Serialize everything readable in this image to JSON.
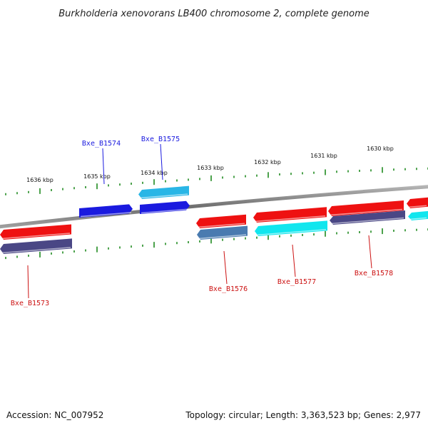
{
  "title": "Burkholderia xenovorans LB400 chromosome 2, complete genome",
  "footer": {
    "accession": "Accession: NC_007952",
    "summary": "Topology: circular; Length: 3,363,523 bp; Genes: 2,977"
  },
  "colors": {
    "backbone": "#7a7a7a",
    "ruler_ticks": "#1f8a1f",
    "tick_label": "#111111",
    "forward_strand": "#1a1adf",
    "forward_strand_alt": "#29b6e6",
    "reverse_strand_red": "#ee1111",
    "reverse_strand_navy": "#4a4785",
    "reverse_strand_steel": "#4a7bb0",
    "reverse_strand_cyan": "#11e6ee",
    "label_forward": "#1a1adf",
    "label_reverse": "#cc1111"
  },
  "ruler": {
    "labels": [
      "1636 kbp",
      "1635 kbp",
      "1634 kbp",
      "1633 kbp",
      "1632 kbp",
      "1631 kbp",
      "1630 kbp"
    ]
  },
  "genes": [
    {
      "name": "Bxe_B1573",
      "strand": "reverse"
    },
    {
      "name": "Bxe_B1574",
      "strand": "forward"
    },
    {
      "name": "Bxe_B1575",
      "strand": "forward"
    },
    {
      "name": "Bxe_B1576",
      "strand": "reverse"
    },
    {
      "name": "Bxe_B1577",
      "strand": "reverse"
    },
    {
      "name": "Bxe_B1578",
      "strand": "reverse"
    }
  ]
}
